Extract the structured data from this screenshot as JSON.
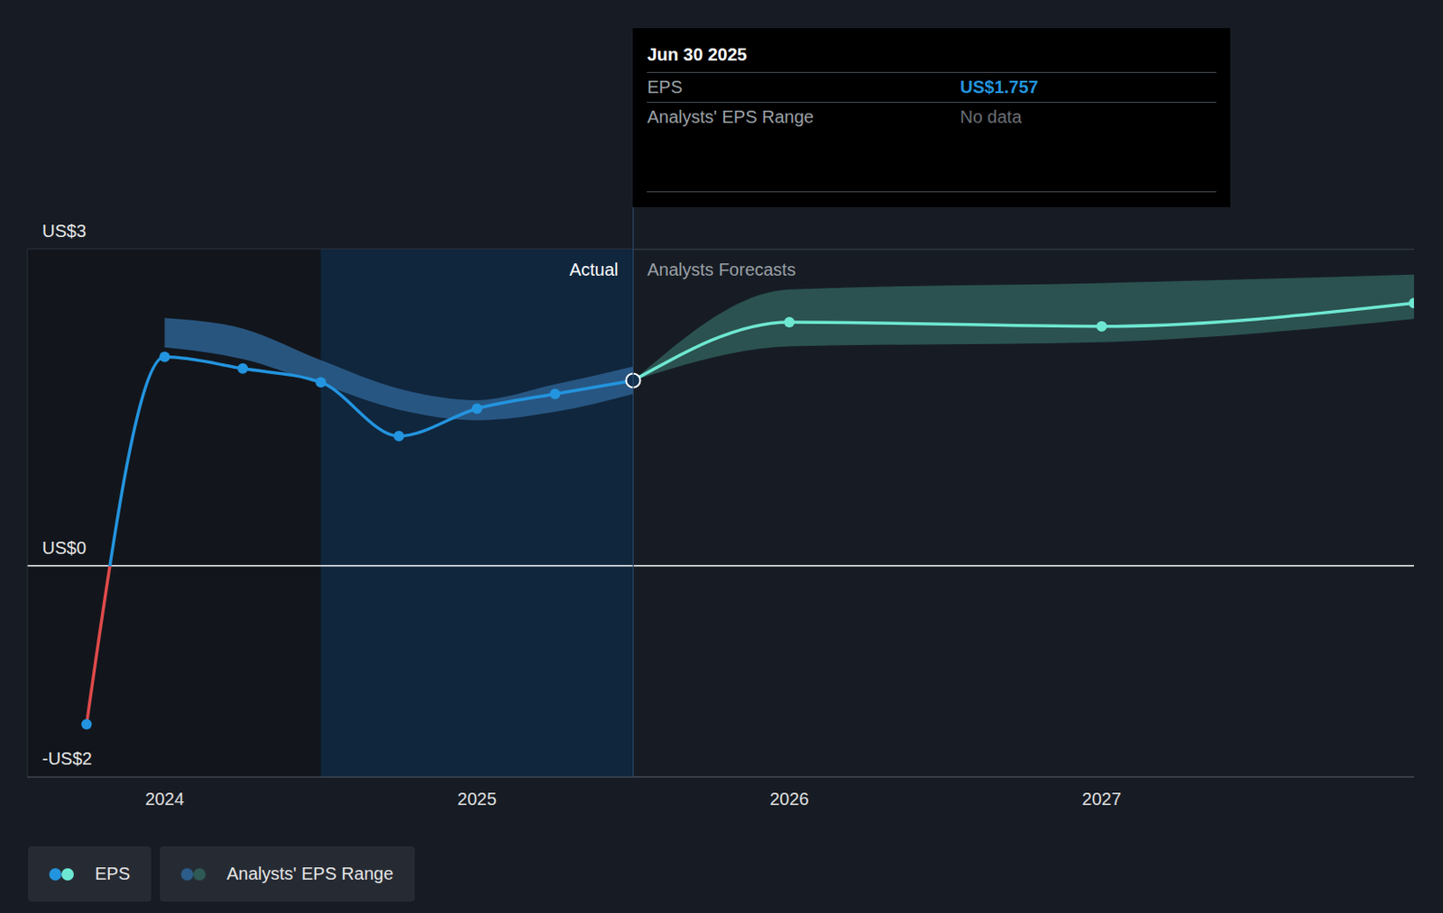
{
  "chart_data": {
    "type": "line",
    "x": [
      2023.75,
      2024,
      2024.25,
      2024.5,
      2024.75,
      2025,
      2025.25,
      2025.5,
      2026,
      2027,
      2028
    ],
    "xlim": [
      2023.56,
      2028
    ],
    "xticks": [
      2024,
      2025,
      2026,
      2027
    ],
    "ylim": [
      -2,
      3
    ],
    "yticks": [
      {
        "value": -2,
        "label": "-US$2"
      },
      {
        "value": 0,
        "label": "US$0"
      },
      {
        "value": 3,
        "label": "US$3"
      }
    ],
    "grid": true,
    "legend": "bottom left",
    "series": [
      {
        "name": "EPS",
        "type": "line",
        "color": "#2394df",
        "marker": "circle",
        "values": [
          -1.5,
          1.98,
          1.87,
          1.74,
          1.23,
          1.49,
          1.63,
          1.757,
          null,
          null,
          null
        ]
      },
      {
        "name": "EPS",
        "type": "line",
        "color": "#6ee7d2",
        "marker": "circle",
        "values": [
          null,
          null,
          null,
          null,
          null,
          null,
          null,
          1.757,
          2.31,
          2.27,
          2.49
        ]
      },
      {
        "name": "Analysts' EPS Range",
        "type": "range",
        "color": "#2b5c8a",
        "low": [
          null,
          2.07,
          1.96,
          1.72,
          1.48,
          1.38,
          1.46,
          1.63,
          null,
          null,
          null
        ],
        "high": [
          null,
          2.35,
          2.25,
          1.95,
          1.68,
          1.57,
          1.72,
          1.89,
          null,
          null,
          null
        ]
      },
      {
        "name": "Analysts' EPS Range",
        "type": "range",
        "color": "#2e5955",
        "low": [
          null,
          null,
          null,
          null,
          null,
          null,
          null,
          1.757,
          2.08,
          2.12,
          2.34
        ],
        "high": [
          null,
          null,
          null,
          null,
          null,
          null,
          null,
          1.757,
          2.62,
          2.68,
          2.76
        ]
      }
    ],
    "annotations": {
      "actual": "Actual",
      "forecast": "Analysts Forecasts"
    },
    "tooltip": {
      "title": "Jun 30 2025",
      "rows": [
        {
          "name": "EPS",
          "value": {
            "value": 1.757,
            "label": "US$1.757"
          }
        },
        {
          "name": "Analysts' EPS Range",
          "value": "No data"
        }
      ]
    }
  }
}
